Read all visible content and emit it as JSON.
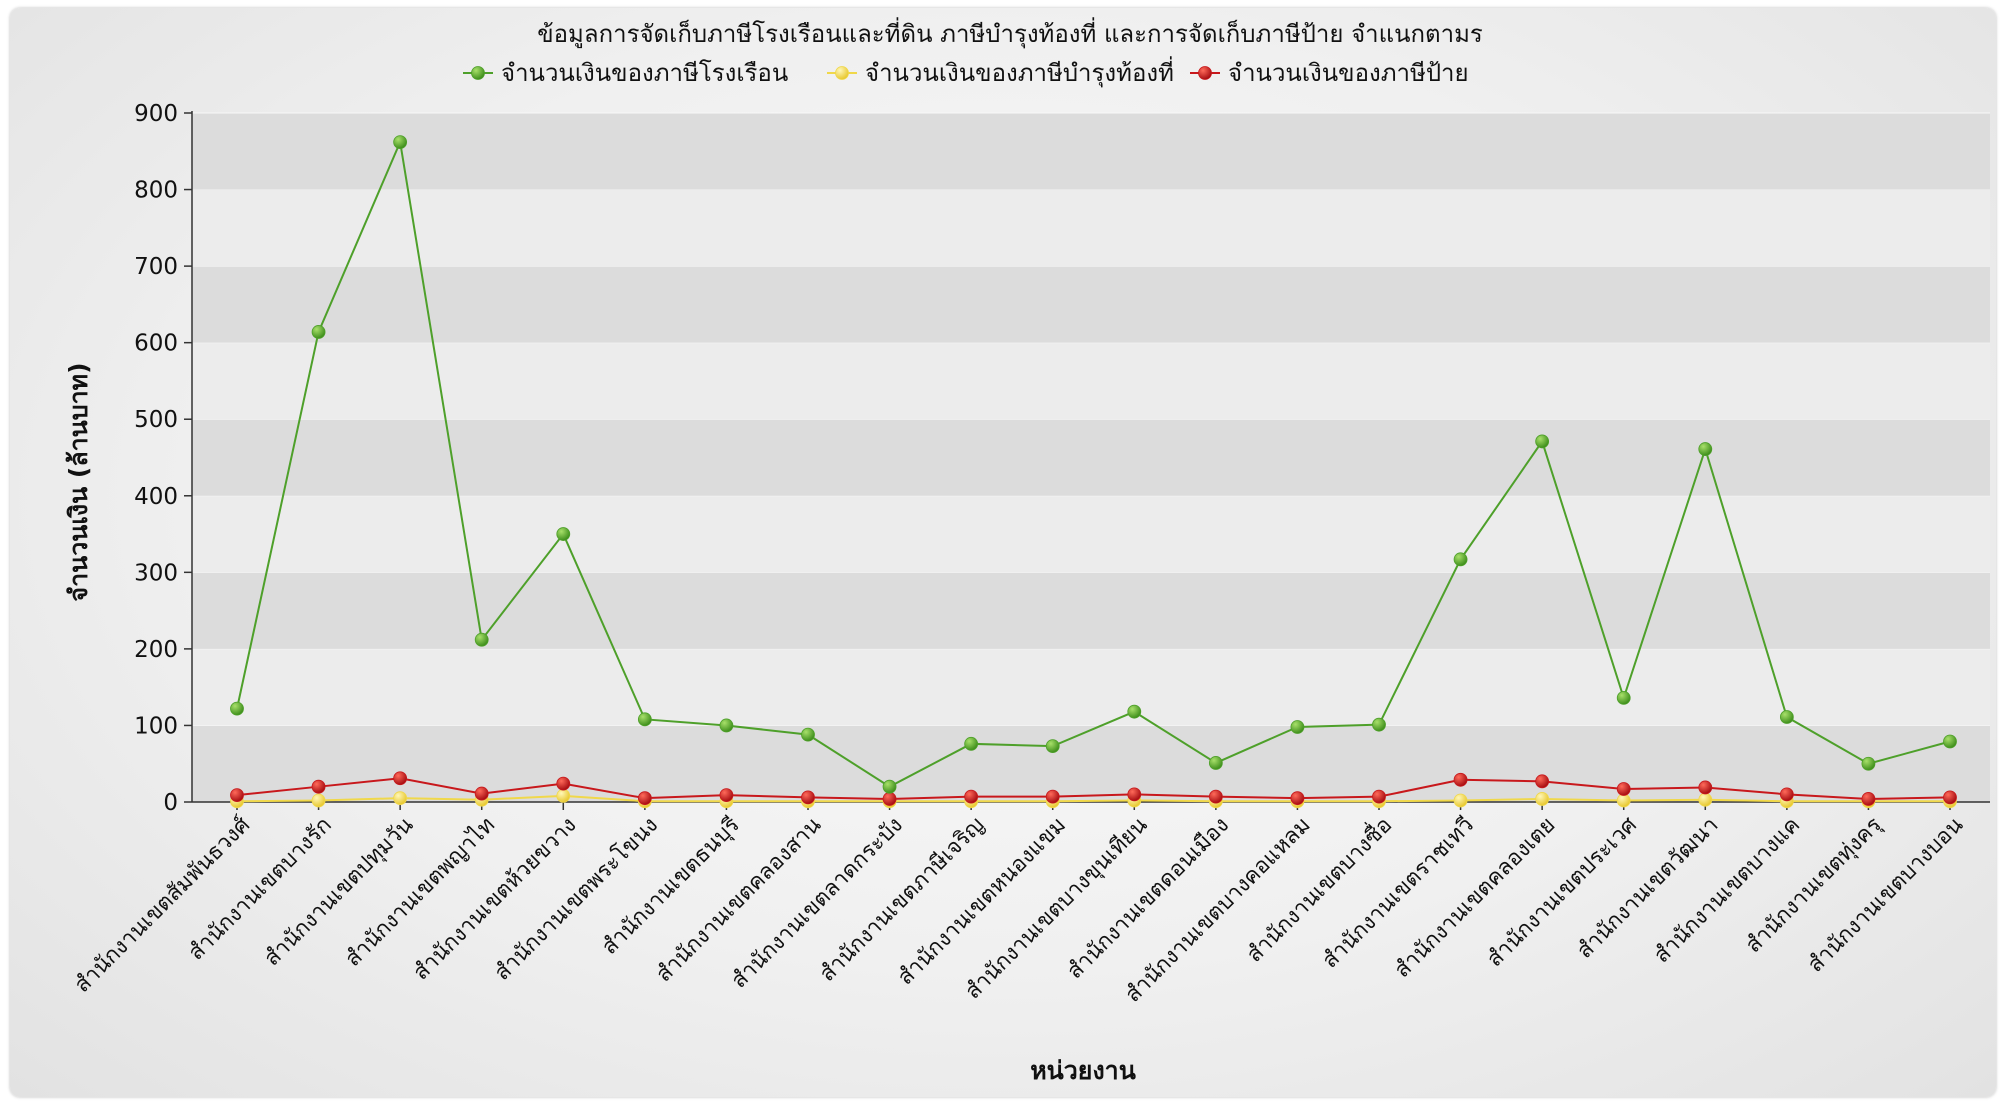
{
  "chart_data": {
    "type": "line",
    "title": "ข้อมูลการจัดเก็บภาษีโรงเรือนและที่ดิน ภาษีบำรุงท้องที่  และการจัดเก็บภาษีป้าย จำแนกตามร",
    "xlabel": "หน่วยงาน",
    "ylabel": "จำนวนเงิน (ล้านบาท)",
    "ylim": [
      0,
      900
    ],
    "yticks": [
      0,
      100,
      200,
      300,
      400,
      500,
      600,
      700,
      800,
      900
    ],
    "grid": "horizontal bands",
    "legend_position": "top-center",
    "categories": [
      "สำนักงานเขตสัมพันธวงศ์",
      "สำนักงานเขตบางรัก",
      "สำนักงานเขตปทุมวัน",
      "สำนักงานเขตพญาไท",
      "สำนักงานเขตห้วยขวาง",
      "สำนักงานเขตพระโขนง",
      "สำนักงานเขตธนบุรี",
      "สำนักงานเขตคลองสาน",
      "สำนักงานเขตลาดกระบัง",
      "สำนักงานเขตภาษีเจริญ",
      "สำนักงานเขตหนองแขม",
      "สำนักงานเขตบางขุนเทียน",
      "สำนักงานเขตดอนเมือง",
      "สำนักงานเขตบางคอแหลม",
      "สำนักงานเขตบางซื่อ",
      "สำนักงานเขตราชเทวี",
      "สำนักงานเขตคลองเตย",
      "สำนักงานเขตประเวศ",
      "สำนักงานเขตวัฒนา",
      "สำนักงานเขตบางแค",
      "สำนักงานเขตทุ่งครุ",
      "สำนักงานเขตบางบอน"
    ],
    "series": [
      {
        "name": "จำนวนเงินของภาษีโรงเรือน",
        "color": "#4ea02a",
        "values": [
          122,
          614,
          862,
          212,
          350,
          108,
          100,
          88,
          20,
          76,
          73,
          118,
          51,
          98,
          101,
          317,
          471,
          136,
          461,
          111,
          50,
          79
        ]
      },
      {
        "name": "จำนวนเงินของภาษีบำรุงท้องที่",
        "color": "#f0d84a",
        "values": [
          1,
          2,
          5,
          3,
          8,
          1,
          1,
          1,
          1,
          1,
          1,
          2,
          1,
          1,
          1,
          2,
          4,
          2,
          3,
          1,
          1,
          1
        ]
      },
      {
        "name": "จำนวนเงินของภาษีป้าย",
        "color": "#c8181c",
        "values": [
          9,
          20,
          31,
          11,
          24,
          5,
          9,
          6,
          4,
          7,
          7,
          10,
          7,
          5,
          7,
          29,
          27,
          17,
          19,
          10,
          4,
          6
        ]
      }
    ]
  }
}
